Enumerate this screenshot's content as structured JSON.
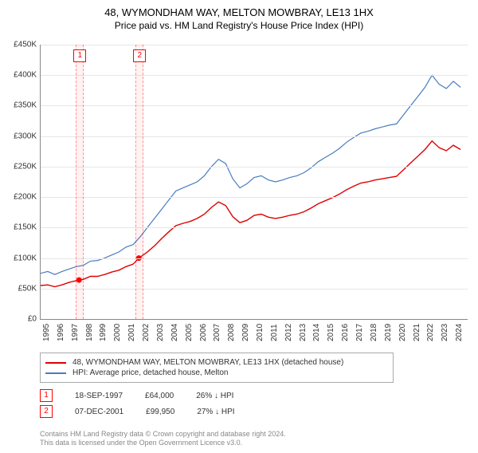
{
  "title": "48, WYMONDHAM WAY, MELTON MOWBRAY, LE13 1HX",
  "subtitle": "Price paid vs. HM Land Registry's House Price Index (HPI)",
  "chart": {
    "type": "line",
    "x_start": 1995,
    "x_end": 2025,
    "xticks": [
      1995,
      1996,
      1997,
      1998,
      1999,
      2000,
      2001,
      2002,
      2003,
      2004,
      2005,
      2006,
      2007,
      2008,
      2009,
      2010,
      2011,
      2012,
      2013,
      2014,
      2015,
      2016,
      2017,
      2018,
      2019,
      2020,
      2021,
      2022,
      2023,
      2024
    ],
    "ylim": [
      0,
      450000
    ],
    "ytick_step": 50000,
    "ytick_prefix": "£",
    "ytick_suffix": "K",
    "grid_color": "#e6e6e6",
    "background_color": "#ffffff",
    "series": [
      {
        "name": "HPI: Average price, detached house, Melton",
        "color": "#4a7cc0",
        "width": 1.2,
        "points": [
          [
            1995.0,
            75000
          ],
          [
            1995.5,
            78000
          ],
          [
            1996.0,
            73000
          ],
          [
            1996.5,
            78000
          ],
          [
            1997.0,
            82000
          ],
          [
            1997.5,
            86000
          ],
          [
            1998.0,
            88000
          ],
          [
            1998.5,
            95000
          ],
          [
            1999.0,
            96000
          ],
          [
            1999.5,
            100000
          ],
          [
            2000.0,
            105000
          ],
          [
            2000.5,
            110000
          ],
          [
            2001.0,
            118000
          ],
          [
            2001.5,
            122000
          ],
          [
            2002.0,
            135000
          ],
          [
            2002.5,
            150000
          ],
          [
            2003.0,
            165000
          ],
          [
            2003.5,
            180000
          ],
          [
            2004.0,
            195000
          ],
          [
            2004.5,
            210000
          ],
          [
            2005.0,
            215000
          ],
          [
            2005.5,
            220000
          ],
          [
            2006.0,
            225000
          ],
          [
            2006.5,
            235000
          ],
          [
            2007.0,
            250000
          ],
          [
            2007.5,
            262000
          ],
          [
            2008.0,
            255000
          ],
          [
            2008.5,
            230000
          ],
          [
            2009.0,
            215000
          ],
          [
            2009.5,
            222000
          ],
          [
            2010.0,
            232000
          ],
          [
            2010.5,
            235000
          ],
          [
            2011.0,
            228000
          ],
          [
            2011.5,
            225000
          ],
          [
            2012.0,
            228000
          ],
          [
            2012.5,
            232000
          ],
          [
            2013.0,
            235000
          ],
          [
            2013.5,
            240000
          ],
          [
            2014.0,
            248000
          ],
          [
            2014.5,
            258000
          ],
          [
            2015.0,
            265000
          ],
          [
            2015.5,
            272000
          ],
          [
            2016.0,
            280000
          ],
          [
            2016.5,
            290000
          ],
          [
            2017.0,
            298000
          ],
          [
            2017.5,
            305000
          ],
          [
            2018.0,
            308000
          ],
          [
            2018.5,
            312000
          ],
          [
            2019.0,
            315000
          ],
          [
            2019.5,
            318000
          ],
          [
            2020.0,
            320000
          ],
          [
            2020.5,
            335000
          ],
          [
            2021.0,
            350000
          ],
          [
            2021.5,
            365000
          ],
          [
            2022.0,
            380000
          ],
          [
            2022.5,
            400000
          ],
          [
            2023.0,
            385000
          ],
          [
            2023.5,
            378000
          ],
          [
            2024.0,
            390000
          ],
          [
            2024.5,
            380000
          ]
        ]
      },
      {
        "name": "48, WYMONDHAM WAY, MELTON MOWBRAY, LE13 1HX (detached house)",
        "color": "#e00000",
        "width": 1.4,
        "points": [
          [
            1995.0,
            55000
          ],
          [
            1995.5,
            56000
          ],
          [
            1996.0,
            53000
          ],
          [
            1996.5,
            56000
          ],
          [
            1997.0,
            60000
          ],
          [
            1997.7,
            64000
          ],
          [
            1998.0,
            65000
          ],
          [
            1998.5,
            70000
          ],
          [
            1999.0,
            70000
          ],
          [
            1999.5,
            73000
          ],
          [
            2000.0,
            77000
          ],
          [
            2000.5,
            80000
          ],
          [
            2001.0,
            86000
          ],
          [
            2001.5,
            90000
          ],
          [
            2001.9,
            99950
          ],
          [
            2002.5,
            110000
          ],
          [
            2003.0,
            120000
          ],
          [
            2003.5,
            132000
          ],
          [
            2004.0,
            143000
          ],
          [
            2004.5,
            153000
          ],
          [
            2005.0,
            157000
          ],
          [
            2005.5,
            160000
          ],
          [
            2006.0,
            165000
          ],
          [
            2006.5,
            172000
          ],
          [
            2007.0,
            183000
          ],
          [
            2007.5,
            192000
          ],
          [
            2008.0,
            186000
          ],
          [
            2008.5,
            168000
          ],
          [
            2009.0,
            158000
          ],
          [
            2009.5,
            162000
          ],
          [
            2010.0,
            170000
          ],
          [
            2010.5,
            172000
          ],
          [
            2011.0,
            167000
          ],
          [
            2011.5,
            165000
          ],
          [
            2012.0,
            167000
          ],
          [
            2012.5,
            170000
          ],
          [
            2013.0,
            172000
          ],
          [
            2013.5,
            176000
          ],
          [
            2014.0,
            182000
          ],
          [
            2014.5,
            189000
          ],
          [
            2015.0,
            194000
          ],
          [
            2015.5,
            199000
          ],
          [
            2016.0,
            205000
          ],
          [
            2016.5,
            212000
          ],
          [
            2017.0,
            218000
          ],
          [
            2017.5,
            223000
          ],
          [
            2018.0,
            225000
          ],
          [
            2018.5,
            228000
          ],
          [
            2019.0,
            230000
          ],
          [
            2019.5,
            232000
          ],
          [
            2020.0,
            234000
          ],
          [
            2020.5,
            245000
          ],
          [
            2021.0,
            256000
          ],
          [
            2021.5,
            267000
          ],
          [
            2022.0,
            278000
          ],
          [
            2022.5,
            292000
          ],
          [
            2023.0,
            281000
          ],
          [
            2023.5,
            276000
          ],
          [
            2024.0,
            285000
          ],
          [
            2024.5,
            278000
          ]
        ]
      }
    ],
    "sale_bands": [
      {
        "label": "1",
        "x": 1997.7
      },
      {
        "label": "2",
        "x": 2001.9
      }
    ],
    "sale_points": [
      {
        "x": 1997.7,
        "y": 64000
      },
      {
        "x": 2001.9,
        "y": 99950
      }
    ]
  },
  "legend": {
    "items": [
      {
        "color": "#e00000",
        "label": "48, WYMONDHAM WAY, MELTON MOWBRAY, LE13 1HX (detached house)"
      },
      {
        "color": "#4a7cc0",
        "label": "HPI: Average price, detached house, Melton"
      }
    ]
  },
  "sales": [
    {
      "n": "1",
      "date": "18-SEP-1997",
      "price": "£64,000",
      "delta": "26% ↓ HPI"
    },
    {
      "n": "2",
      "date": "07-DEC-2001",
      "price": "£99,950",
      "delta": "27% ↓ HPI"
    }
  ],
  "footer1": "Contains HM Land Registry data © Crown copyright and database right 2024.",
  "footer2": "This data is licensed under the Open Government Licence v3.0."
}
